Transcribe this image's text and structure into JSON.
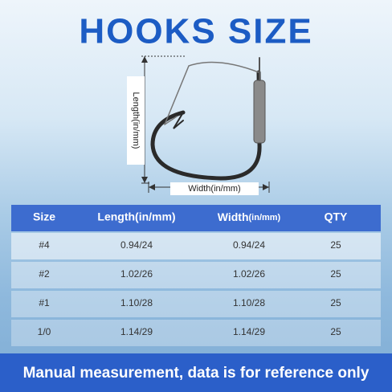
{
  "header": {
    "title": "HOOKS SIZE"
  },
  "diagram": {
    "length_label": "Length(in/mm)",
    "width_label": "Width(in/mm)"
  },
  "table": {
    "columns": [
      "Size",
      "Length(in/mm)",
      "Width",
      "(in/mm)",
      "QTY"
    ],
    "rows": [
      [
        "#4",
        "0.94/24",
        "0.94/24",
        "25"
      ],
      [
        "#2",
        "1.02/26",
        "1.02/26",
        "25"
      ],
      [
        "#1",
        "1.10/28",
        "1.10/28",
        "25"
      ],
      [
        "1/0",
        "1.14/29",
        "1.14/29",
        "25"
      ]
    ]
  },
  "footer": {
    "note": "Manual measurement, data is for reference only"
  }
}
